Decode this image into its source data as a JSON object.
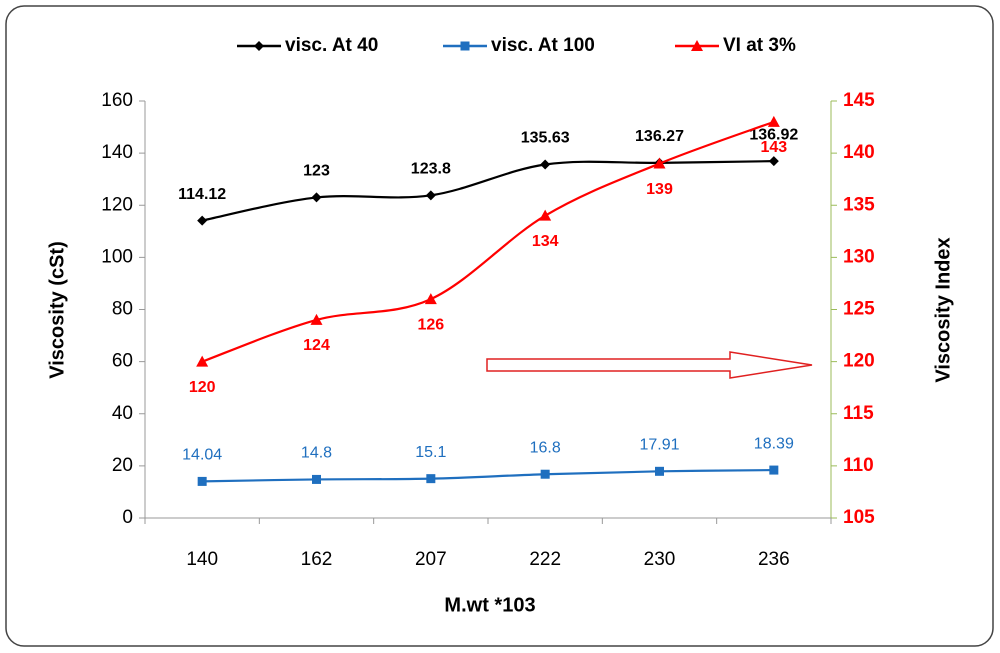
{
  "chart_data": {
    "type": "line",
    "categories": [
      "140",
      "162",
      "207",
      "222",
      "230",
      "236"
    ],
    "series": [
      {
        "name": "visc. At 40",
        "color": "#000000",
        "marker": "diamond",
        "values": [
          114.12,
          123,
          123.8,
          135.63,
          136.27,
          136.92
        ]
      },
      {
        "name": "visc. At 100",
        "color": "#1f6fbf",
        "marker": "square",
        "values": [
          14.04,
          14.8,
          15.1,
          16.8,
          17.91,
          18.39
        ]
      },
      {
        "name": "VI at 3%",
        "color": "#ff0000",
        "marker": "triangle",
        "axis": "y2",
        "values": [
          120,
          124,
          126,
          134,
          139,
          143
        ]
      }
    ],
    "xlabel": "M.wt *103",
    "ylabel": "Viscosity (cSt)",
    "y2label": "Viscosity Index",
    "ylim": [
      0,
      160
    ],
    "yticks": [
      0,
      20,
      40,
      60,
      80,
      100,
      120,
      140,
      160
    ],
    "y2lim": [
      105,
      145
    ],
    "y2ticks": [
      105,
      110,
      115,
      120,
      125,
      130,
      135,
      140,
      145
    ],
    "legend": "top",
    "smooth": true
  }
}
